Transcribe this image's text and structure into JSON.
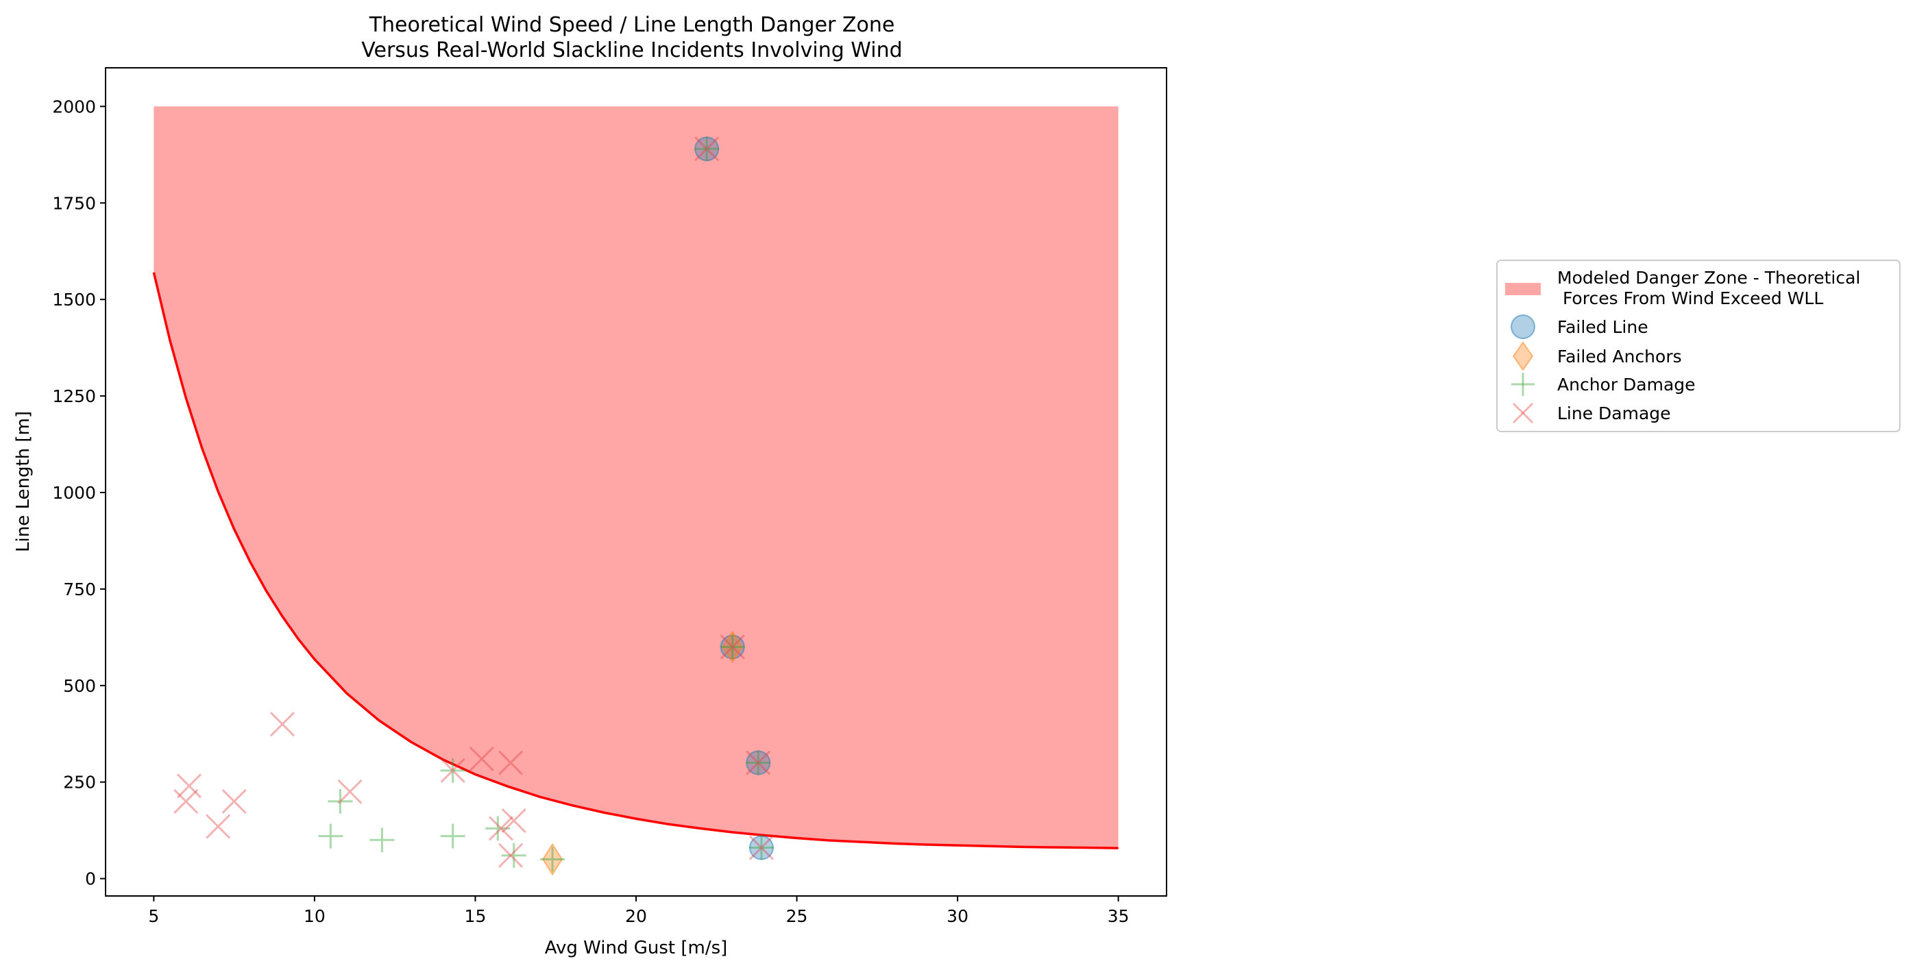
{
  "chart_data": {
    "type": "scatter",
    "title_line1": "Theoretical Wind Speed / Line Length Danger Zone",
    "title_line2": "Versus Real-World Slackline Incidents Involving Wind",
    "xlabel": "Avg Wind Gust [m/s]",
    "ylabel": "Line Length [m]",
    "xlim": [
      3.5,
      36.5
    ],
    "ylim": [
      -45,
      2100
    ],
    "xticks": [
      5,
      10,
      15,
      20,
      25,
      30,
      35
    ],
    "yticks": [
      0,
      250,
      500,
      750,
      1000,
      1250,
      1500,
      1750,
      2000
    ],
    "grid": false,
    "legend_position": "right-outside",
    "danger_zone": {
      "name_line1": "Modeled Danger Zone - Theoretical",
      "name_line2": " Forces From Wind Exceed WLL",
      "color": "#ff5555",
      "upper": 2000,
      "curve": [
        [
          5,
          1570
        ],
        [
          5.5,
          1395
        ],
        [
          6,
          1245
        ],
        [
          6.5,
          1115
        ],
        [
          7,
          1003
        ],
        [
          7.5,
          905
        ],
        [
          8,
          820
        ],
        [
          8.5,
          745
        ],
        [
          9,
          679
        ],
        [
          9.5,
          620
        ],
        [
          10,
          568
        ],
        [
          11,
          480
        ],
        [
          12,
          410
        ],
        [
          13,
          354
        ],
        [
          14,
          308
        ],
        [
          15,
          270
        ],
        [
          16,
          239
        ],
        [
          17,
          212
        ],
        [
          18,
          190
        ],
        [
          19,
          171
        ],
        [
          20,
          155
        ],
        [
          21,
          141
        ],
        [
          22,
          130
        ],
        [
          23,
          120
        ],
        [
          24,
          112
        ],
        [
          25,
          105
        ],
        [
          26,
          99
        ],
        [
          27,
          95
        ],
        [
          28,
          91
        ],
        [
          29,
          88
        ],
        [
          30,
          86
        ],
        [
          31,
          84
        ],
        [
          32,
          82
        ],
        [
          33,
          81
        ],
        [
          34,
          80
        ],
        [
          35,
          79
        ]
      ]
    },
    "series": [
      {
        "name": "Failed Line",
        "marker": "circle",
        "color": "#1f77b4",
        "points": [
          [
            22.2,
            1890
          ],
          [
            23.0,
            600
          ],
          [
            23.8,
            300
          ],
          [
            23.9,
            80
          ]
        ]
      },
      {
        "name": "Failed Anchors",
        "marker": "diamond",
        "color": "#ff7f0e",
        "points": [
          [
            23.0,
            600
          ],
          [
            17.4,
            50
          ]
        ]
      },
      {
        "name": "Anchor Damage",
        "marker": "plus",
        "color": "#2ca02c",
        "points": [
          [
            22.2,
            1890
          ],
          [
            23.0,
            600
          ],
          [
            23.8,
            300
          ],
          [
            23.9,
            80
          ],
          [
            10.8,
            200
          ],
          [
            10.5,
            110
          ],
          [
            12.1,
            100
          ],
          [
            14.3,
            110
          ],
          [
            14.3,
            280
          ],
          [
            15.7,
            130
          ],
          [
            16.2,
            60
          ],
          [
            17.4,
            50
          ]
        ]
      },
      {
        "name": "Line Damage",
        "marker": "x",
        "color": "#e04040",
        "points": [
          [
            22.2,
            1890
          ],
          [
            23.0,
            600
          ],
          [
            23.8,
            300
          ],
          [
            23.9,
            80
          ],
          [
            6.1,
            240
          ],
          [
            6.0,
            200
          ],
          [
            7.0,
            135
          ],
          [
            7.5,
            200
          ],
          [
            9.0,
            400
          ],
          [
            11.1,
            225
          ],
          [
            14.3,
            280
          ],
          [
            15.2,
            310
          ],
          [
            16.1,
            300
          ],
          [
            15.8,
            130
          ],
          [
            16.2,
            150
          ],
          [
            16.1,
            60
          ]
        ]
      }
    ]
  }
}
